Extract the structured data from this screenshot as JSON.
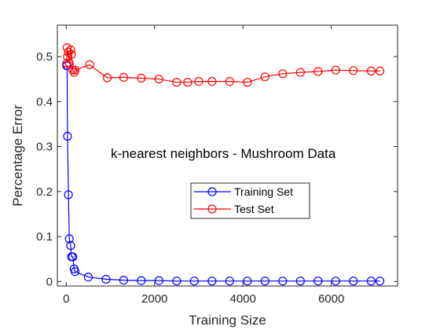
{
  "chart_data": {
    "type": "line",
    "title": "",
    "xlabel": "Training Size",
    "ylabel": "Percentage Error",
    "annotation": "k-nearest neighbors - Mushroom Data",
    "xlim": [
      -200,
      7500
    ],
    "ylim": [
      -0.01,
      0.57
    ],
    "xticks": [
      0,
      2000,
      4000,
      6000
    ],
    "yticks": [
      0,
      0.1,
      0.2,
      0.3,
      0.4,
      0.5
    ],
    "ytick_labels": [
      "0",
      "0.1",
      "0.2",
      "0.3",
      "0.4",
      "0.5"
    ],
    "grid": false,
    "legend_placement": "center-right",
    "series": [
      {
        "name": "Training Set",
        "color": "#0000ff",
        "marker": "circle",
        "x": [
          10,
          20,
          30,
          50,
          70,
          100,
          120,
          150,
          180,
          200,
          500,
          900,
          1300,
          1700,
          2100,
          2500,
          2900,
          3300,
          3700,
          4100,
          4500,
          4900,
          5300,
          5700,
          6100,
          6500,
          6900,
          7100
        ],
        "y": [
          0.48,
          0.48,
          0.323,
          0.193,
          0.095,
          0.08,
          0.055,
          0.055,
          0.028,
          0.022,
          0.01,
          0.005,
          0.003,
          0.002,
          0.002,
          0.001,
          0.001,
          0.001,
          0.001,
          0.001,
          0.001,
          0.001,
          0.001,
          0.001,
          0.001,
          0.001,
          0.001,
          0.001
        ]
      },
      {
        "name": "Test Set",
        "color": "#ff0000",
        "marker": "circle",
        "x": [
          10,
          20,
          30,
          50,
          70,
          100,
          120,
          150,
          180,
          200,
          530,
          930,
          1300,
          1700,
          2100,
          2500,
          2750,
          3000,
          3300,
          3700,
          4100,
          4500,
          4900,
          5300,
          5700,
          6100,
          6500,
          6900,
          7100
        ],
        "y": [
          0.485,
          0.52,
          0.5,
          0.51,
          0.485,
          0.515,
          0.505,
          0.47,
          0.465,
          0.47,
          0.482,
          0.453,
          0.454,
          0.452,
          0.45,
          0.443,
          0.443,
          0.445,
          0.445,
          0.445,
          0.443,
          0.455,
          0.462,
          0.465,
          0.467,
          0.47,
          0.469,
          0.468,
          0.468
        ]
      }
    ]
  }
}
